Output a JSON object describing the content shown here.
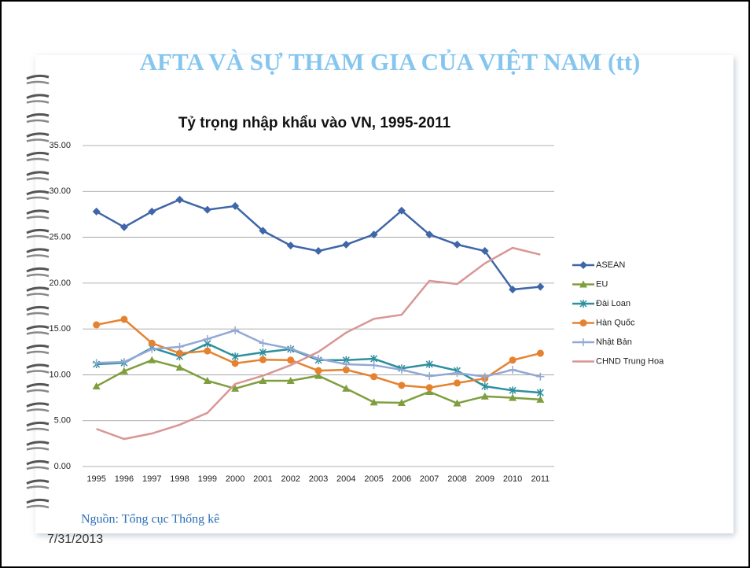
{
  "slide": {
    "title": "AFTA VÀ SỰ THAM GIA CỦA VIỆT NAM (tt)",
    "source": "Nguồn: Tổng cục Thống kê",
    "date": "7/31/2013"
  },
  "chart_data": {
    "type": "line",
    "title": "Tỷ trọng nhập khẩu vào VN, 1995-2011",
    "categories": [
      "1995",
      "1996",
      "1997",
      "1998",
      "1999",
      "2000",
      "2001",
      "2002",
      "2003",
      "2004",
      "2005",
      "2006",
      "2007",
      "2008",
      "2009",
      "2010",
      "2011"
    ],
    "ylim": [
      0,
      35
    ],
    "yticks": [
      {
        "value": 0,
        "label": "0.00"
      },
      {
        "value": 5,
        "label": "5.00"
      },
      {
        "value": 10,
        "label": "10.00"
      },
      {
        "value": 15,
        "label": "15.00"
      },
      {
        "value": 20,
        "label": "20.00"
      },
      {
        "value": 25,
        "label": "25.00"
      },
      {
        "value": 30,
        "label": "30.00"
      },
      {
        "value": 35,
        "label": "35.00"
      }
    ],
    "grid": true,
    "legend": "right",
    "series": [
      {
        "name": "ASEAN",
        "color": "#3f66a8",
        "marker": "diamond",
        "values": [
          27.8,
          26.1,
          27.8,
          29.1,
          28.0,
          28.4,
          25.7,
          24.1,
          23.5,
          24.2,
          25.3,
          27.9,
          25.3,
          24.2,
          23.5,
          19.3,
          19.6
        ]
      },
      {
        "name": "EU",
        "color": "#7f9f3f",
        "marker": "triangle",
        "values": [
          8.75,
          10.4,
          11.6,
          10.8,
          9.35,
          8.5,
          9.35,
          9.35,
          9.9,
          8.5,
          7.0,
          6.95,
          8.15,
          6.9,
          7.65,
          7.5,
          7.3
        ]
      },
      {
        "name": "Đài Loan",
        "color": "#2e8f9e",
        "marker": "star",
        "values": [
          11.15,
          11.3,
          12.95,
          12.0,
          13.4,
          12.0,
          12.45,
          12.8,
          11.6,
          11.6,
          11.75,
          10.7,
          11.15,
          10.45,
          8.75,
          8.3,
          8.05
        ]
      },
      {
        "name": "Hàn Quốc",
        "color": "#e6822f",
        "marker": "circle",
        "values": [
          15.45,
          16.05,
          13.45,
          12.35,
          12.6,
          11.25,
          11.65,
          11.6,
          10.45,
          10.55,
          9.8,
          8.85,
          8.6,
          9.1,
          9.6,
          11.6,
          12.35
        ]
      },
      {
        "name": "Nhật Bản",
        "color": "#93a9d4",
        "marker": "plus",
        "values": [
          11.3,
          11.4,
          12.8,
          13.05,
          13.9,
          14.85,
          13.45,
          12.85,
          11.75,
          11.15,
          11.05,
          10.55,
          9.85,
          10.2,
          9.8,
          10.55,
          9.8
        ]
      },
      {
        "name": "CHND Trung Hoa",
        "color": "#d99694",
        "marker": "none",
        "values": [
          4.1,
          3.0,
          3.6,
          4.55,
          5.85,
          9.0,
          9.9,
          11.05,
          12.5,
          14.6,
          16.1,
          16.55,
          20.25,
          19.9,
          22.15,
          23.85,
          23.1
        ]
      }
    ]
  }
}
